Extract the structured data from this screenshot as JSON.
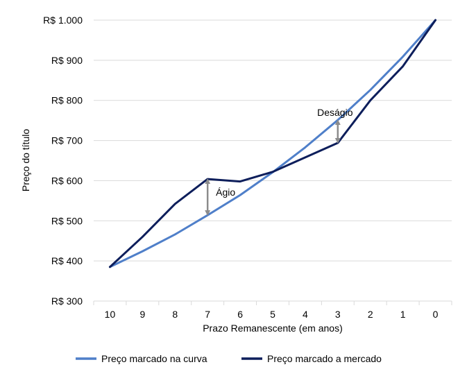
{
  "chart_data": {
    "type": "line",
    "title": "",
    "xlabel": "Prazo Remanescente (em anos)",
    "ylabel": "Preço do título",
    "categories": [
      "10",
      "9",
      "8",
      "7",
      "6",
      "5",
      "4",
      "3",
      "2",
      "1",
      "0"
    ],
    "y_tick_labels": [
      "R$ 300",
      "R$ 400",
      "R$ 500",
      "R$ 600",
      "R$ 700",
      "R$ 800",
      "R$ 900",
      "R$ 1.000"
    ],
    "y_ticks": [
      300,
      400,
      500,
      600,
      700,
      800,
      900,
      1000
    ],
    "ylim": [
      300,
      1000
    ],
    "grid": true,
    "legend_position": "bottom",
    "series": [
      {
        "name": "Preço marcado na curva",
        "color": "#4F7FC9",
        "values": [
          385,
          424,
          466,
          514,
          564,
          621,
          683,
          751,
          826,
          909,
          1000
        ]
      },
      {
        "name": "Preço marcado a mercado",
        "color": "#0D1E5B",
        "values": [
          385,
          460,
          542,
          604,
          598,
          622,
          658,
          694,
          800,
          885,
          1000
        ]
      }
    ],
    "annotations": [
      {
        "text": "Ágio",
        "at_category": "7",
        "from_value": 514,
        "to_value": 604,
        "arrow_color": "#8C8C8C"
      },
      {
        "text": "Deságio",
        "at_category": "3",
        "from_value": 751,
        "to_value": 694,
        "arrow_color": "#8C8C8C"
      }
    ]
  }
}
